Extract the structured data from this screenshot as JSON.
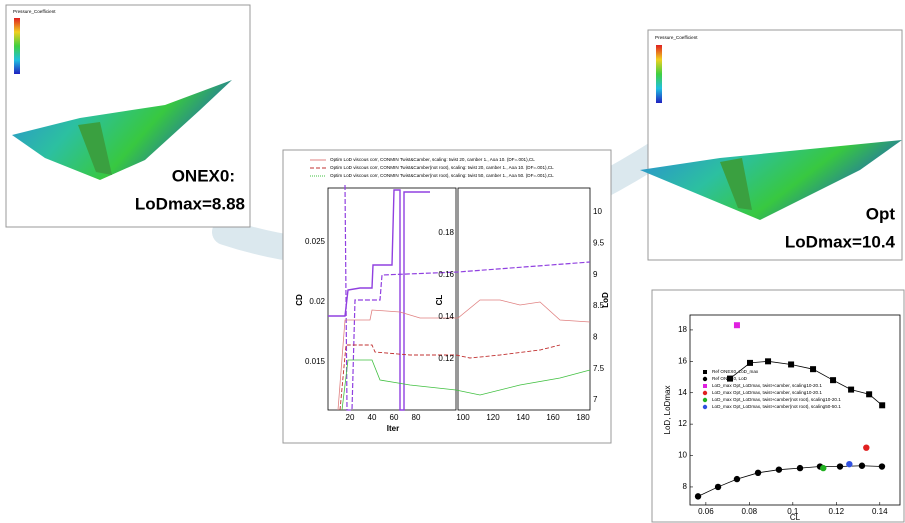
{
  "panels": {
    "baseline": {
      "colorbar_title": "Pressure_Coefficient",
      "name": "ONEX0:",
      "result": "LoDmax=8.88"
    },
    "optimized": {
      "colorbar_title": "Pressure_Coefficient",
      "name": "Opt",
      "result": "LoDmax=10.4"
    }
  },
  "history_chart": {
    "legend": [
      "Optim LoD viscous corr, CONMIN Twist&Camber, scaling: twist 20, camber 1., Aoa 10. (DF=.001),CL",
      "Optim LoD viscous corr, CONMIN Twist&Camber(not root), scaling: twist 20, camber 1., Aoa 10. (DF=.001),CL",
      "Optim LoD viscous corr, CONMIN Twist&Camber(not root), scaling: twist 50, camber 1., Aoa 50. (DF=.001),CL"
    ],
    "x_label": "Iter",
    "cd_label": "CD",
    "cl_label": "CL",
    "lod_label": "LoD",
    "left_x_ticks": [
      20,
      40,
      60,
      80
    ],
    "right_x_ticks": [
      100,
      120,
      140,
      160,
      180
    ],
    "cd_ticks": [
      0.025,
      0.02,
      0.015
    ],
    "cl_ticks": [
      0.18,
      0.16,
      0.14,
      0.12
    ],
    "lod_ticks": [
      10,
      9.5,
      9,
      8.5,
      8,
      7.5,
      7
    ]
  },
  "chart_data": {
    "type": "scatter",
    "xlabel": "CL",
    "ylabel": "LoD, LoDmax",
    "xlim": [
      0.0527,
      0.1493
    ],
    "ylim": [
      6.85,
      18.95
    ],
    "xticks": [
      0.06,
      0.08,
      0.1,
      0.12,
      0.14
    ],
    "yticks": [
      8,
      10,
      12,
      14,
      16,
      18
    ],
    "series": [
      {
        "name": "Ref ONEX0, LoD_max",
        "color": "#000000",
        "marker": "square",
        "line": true,
        "x": [
          0.0711,
          0.0803,
          0.0886,
          0.0992,
          0.1093,
          0.1185,
          0.1268,
          0.1351,
          0.1411
        ],
        "values": [
          14.9,
          15.9,
          16.0,
          15.8,
          15.5,
          14.8,
          14.2,
          13.9,
          13.2
        ]
      },
      {
        "name": "Ref ONEX0, LoD",
        "color": "#000000",
        "marker": "circle",
        "line": true,
        "x": [
          0.0564,
          0.0656,
          0.0743,
          0.084,
          0.0936,
          0.1033,
          0.1125,
          0.1217,
          0.1318,
          0.141
        ],
        "values": [
          7.4,
          8.0,
          8.5,
          8.9,
          9.1,
          9.2,
          9.3,
          9.3,
          9.35,
          9.3
        ]
      },
      {
        "name": "LoD_max Opt_LoDmax, twist+camber, scaling10-20.1",
        "color": "#e020e0",
        "marker": "square",
        "line": false,
        "x": [
          0.0743
        ],
        "values": [
          18.3
        ]
      },
      {
        "name": "LoD_max Opt_LoDmax, twist+camber, scaling10-20.1",
        "color": "#e02020",
        "marker": "circle",
        "line": false,
        "x": [
          0.1338
        ],
        "values": [
          10.5
        ]
      },
      {
        "name": "LoD_max Opt_LoDmax, twist+camber(not root), scaling10-20.1",
        "color": "#20b020",
        "marker": "circle",
        "line": false,
        "x": [
          0.114
        ],
        "values": [
          9.2
        ]
      },
      {
        "name": "LoD_max Opt_LoDmax, twist+camber(not root), scaling50-50.1",
        "color": "#3050e0",
        "marker": "circle",
        "line": false,
        "x": [
          0.126
        ],
        "values": [
          9.45
        ]
      }
    ]
  }
}
